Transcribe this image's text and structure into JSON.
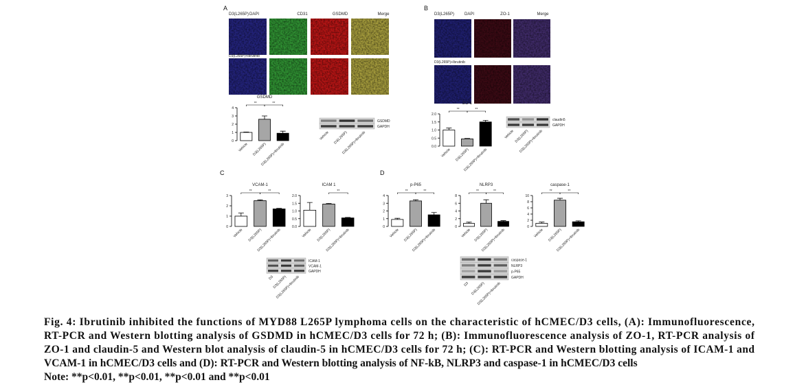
{
  "panel_labels": [
    "A",
    "B",
    "C",
    "D"
  ],
  "images": [
    {
      "row_labels": [
        "D3(L265P)",
        "D3(L265P)+Ibrutinib"
      ],
      "column_labels": [
        "DAPI",
        "CD31",
        "GSDMD",
        "Merge"
      ]
    },
    {
      "row_labels": [
        "D3(L265P)",
        "D3(L265P)+Ibrutinib"
      ],
      "column_labels": [
        "DAPI",
        "ZO-1",
        "Merge"
      ]
    }
  ],
  "charts": [
    {
      "type": "bar",
      "title": "GSDMD",
      "categories": [
        "Vehicle",
        "D3(L265P)",
        "D3(L265P)+Ibrutinib"
      ],
      "values": [
        1,
        2.6,
        0.9
      ],
      "errors": [
        0.05,
        0.4,
        0.25
      ],
      "colors": [
        "#ffffff",
        "#a6a6a6",
        "#000000"
      ],
      "ylim": [
        0,
        4
      ],
      "yticks": [
        0,
        1,
        2,
        3,
        4
      ],
      "significance": [
        "**",
        "**"
      ]
    },
    {
      "type": "bar",
      "title": "ZO-1",
      "categories": [
        "Vehicle",
        "D3(L265P)",
        "D3(L265P)+Ibrutinib"
      ],
      "values": [
        1.0,
        0.45,
        1.5
      ],
      "errors": [
        0.12,
        0.03,
        0.1
      ],
      "colors": [
        "#ffffff",
        "#a6a6a6",
        "#000000"
      ],
      "ylim": [
        0,
        2
      ],
      "yticks": [
        {
          "value": 0,
          "label": "0.0"
        },
        0.5,
        {
          "value": 1,
          "label": "1.0"
        },
        1.5,
        {
          "value": 2,
          "label": "2.0"
        }
      ],
      "significance": [
        "**",
        "**"
      ]
    },
    {
      "type": "bar",
      "title": "VCAM-1",
      "categories": [
        "Vehicle",
        "D3(L265P)",
        "D3(L265P)+Ibrutinib"
      ],
      "values": [
        1.0,
        2.5,
        1.7
      ],
      "errors": [
        0.3,
        0.08,
        0.06
      ],
      "colors": [
        "#ffffff",
        "#a6a6a6",
        "#000000"
      ],
      "ylim": [
        0,
        3
      ],
      "yticks": [
        0,
        1,
        2,
        3
      ],
      "significance": [
        "**",
        "**"
      ]
    },
    {
      "type": "bar",
      "title": "ICAM 1",
      "categories": [
        "Vehicle",
        "D3(L265P)",
        "D3(L265P)+Ibrutinib"
      ],
      "values": [
        1.05,
        1.45,
        0.55
      ],
      "errors": [
        0.5,
        0.04,
        0.03
      ],
      "colors": [
        "#ffffff",
        "#a6a6a6",
        "#000000"
      ],
      "ylim": [
        0,
        2
      ],
      "yticks": [
        {
          "value": 0,
          "label": "0.0"
        },
        0.5,
        {
          "value": 1,
          "label": "1.0"
        },
        1.5,
        {
          "value": 2,
          "label": "2.0"
        }
      ],
      "significance": [
        "**"
      ]
    },
    {
      "type": "bar",
      "title": "p-P65",
      "categories": [
        "Vehicle",
        "D3(L265P)",
        "D3(L265P)+Ibrutinib"
      ],
      "values": [
        0.9,
        3.3,
        1.5
      ],
      "errors": [
        0.15,
        0.15,
        0.3
      ],
      "colors": [
        "#ffffff",
        "#a6a6a6",
        "#000000"
      ],
      "ylim": [
        0,
        4
      ],
      "yticks": [
        0,
        1,
        2,
        3,
        4
      ],
      "significance": [
        "**",
        "**"
      ]
    },
    {
      "type": "bar",
      "title": "NLRP3",
      "categories": [
        "Vehicle",
        "D3(L265P)",
        "D3(L265P)+Ibrutinib"
      ],
      "values": [
        0.8,
        6,
        1.3
      ],
      "errors": [
        0.3,
        0.9,
        0.2
      ],
      "colors": [
        "#ffffff",
        "#a6a6a6",
        "#000000"
      ],
      "ylim": [
        0,
        8
      ],
      "yticks": [
        0,
        2,
        4,
        6,
        8
      ],
      "significance": [
        "**",
        "**"
      ]
    },
    {
      "type": "bar",
      "title": "caspase-1",
      "categories": [
        "Vehicle",
        "D3(L265P)",
        "D3(L265P)+Ibrutinib"
      ],
      "values": [
        1,
        8.5,
        1.5
      ],
      "errors": [
        0.4,
        0.6,
        0.3
      ],
      "colors": [
        "#ffffff",
        "#a6a6a6",
        "#000000"
      ],
      "ylim": [
        0,
        10
      ],
      "yticks": [
        0,
        2,
        4,
        6,
        8,
        10
      ],
      "significance": [
        "**",
        "**"
      ]
    }
  ],
  "blots": [
    {
      "bands": [
        "GSDMD",
        "GAPDH"
      ],
      "lanes": [
        "Vehicle",
        "D3(L265P)",
        "D3(L265P)+Ibrutinib"
      ]
    },
    {
      "bands": [
        "claudin5",
        "GAPDH"
      ],
      "lanes": [
        "Vehicle",
        "D3(L265P)",
        "D3(L265P)+Ibrutinib"
      ]
    },
    {
      "bands": [
        "ICAM-1",
        "VCAM-1",
        "GAPDH"
      ],
      "lanes": [
        "D3",
        "D3(L265P)",
        "D3(L265P)+Ibrutinib"
      ]
    },
    {
      "bands": [
        "caspase-1",
        "NLRP3",
        "p-P65",
        "GAPDH"
      ],
      "lanes": [
        "D3",
        "D3(L265P)",
        "D3(L265P)+Ibrutinib"
      ]
    }
  ],
  "caption": {
    "lines": [
      "Fig. 4: Ibrutinib inhibited the functions of MYD88 L265P lymphoma cells on the characteristic of hCMEC/D3 cells, (A): Immunofluorescence,",
      "RT-PCR and Western blotting analysis of GSDMD in hCMEC/D3 cells for 72 h; (B): Immunofluorescence analysis of ZO-1, RT-PCR analysis of",
      "ZO-1 and claudin-5 and Western blot analysis of claudin-5 in hCMEC/D3 cells for 72 h; (C): RT-PCR and Western blotting analysis of ICAM-1 and",
      "VCAM-1 in hCMEC/D3 cells and (D): RT-PCR and Western blotting analysis of NF-kB, NLRP3 and caspase-1 in hCMEC/D3 cells"
    ],
    "note": "Note: **p<0.01, **p<0.01, **p<0.01 and **p<0.01"
  }
}
